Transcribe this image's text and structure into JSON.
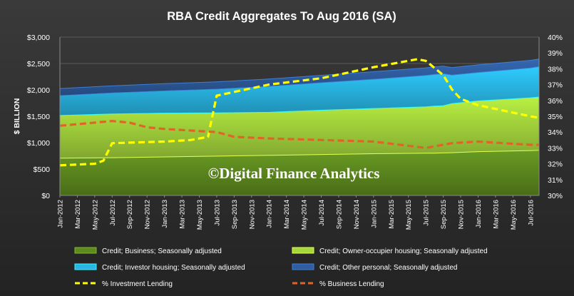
{
  "chart_data": {
    "type": "area",
    "title": "RBA Credit Aggregates To Aug 2016 (SA)",
    "ylabel": "$ BILLION",
    "ylim": [
      0,
      3000
    ],
    "y_ticks": [
      "$0",
      "$500",
      "$1,000",
      "$1,500",
      "$2,000",
      "$2,500",
      "$3,000"
    ],
    "y2lim": [
      0.3,
      0.4
    ],
    "y2_ticks": [
      "30%",
      "31%",
      "32%",
      "33%",
      "34%",
      "35%",
      "36%",
      "37%",
      "38%",
      "39%",
      "40%"
    ],
    "x_tick_labels": [
      "Jan-2012",
      "Mar-2012",
      "May-2012",
      "Jul-2012",
      "Sep-2012",
      "Nov-2012",
      "Jan-2013",
      "Mar-2013",
      "May-2013",
      "Jul-2013",
      "Sep-2013",
      "Nov-2013",
      "Jan-2014",
      "Mar-2014",
      "May-2014",
      "Jul-2014",
      "Sep-2014",
      "Nov-2014",
      "Jan-2015",
      "Mar-2015",
      "May-2015",
      "Jul-2015",
      "Sep-2015",
      "Nov-2015",
      "Jan-2016",
      "Mar-2016",
      "May-2016",
      "Jul-2016"
    ],
    "x": [
      "Jan-2012",
      "Jul-2012",
      "Jan-2013",
      "Jul-2013",
      "Jan-2014",
      "Jul-2014",
      "Jan-2015",
      "Jul-2015",
      "Aug-2015",
      "Sep-2015",
      "Oct-2015",
      "Jan-2016",
      "Jul-2016",
      "Aug-2016"
    ],
    "stacked_series": [
      {
        "name": "Credit; Business; Seasonally adjusted",
        "values": [
          705,
          715,
          730,
          745,
          760,
          775,
          790,
          800,
          802,
          805,
          810,
          830,
          850,
          855
        ],
        "color": "#5e8a1f"
      },
      {
        "name": "Credit; Owner-occupier housing; Seasonally adjusted",
        "values": [
          810,
          830,
          830,
          818,
          816,
          840,
          857,
          880,
          890,
          895,
          930,
          960,
          1000,
          1010
        ],
        "color": "#a5d63c"
      },
      {
        "name": "Credit; Investor housing; Seasonally adjusted",
        "values": [
          375,
          395,
          420,
          450,
          490,
          520,
          555,
          595,
          600,
          605,
          540,
          540,
          565,
          575
        ],
        "color": "#29b6e4"
      },
      {
        "name": "Credit; Other personal; Seasonally adjusted",
        "values": [
          135,
          136,
          137,
          138,
          140,
          141,
          142,
          143,
          143,
          143,
          143,
          144,
          145,
          145
        ],
        "color": "#2f5d9f"
      }
    ],
    "line_series": [
      {
        "name": "% Investment Lending",
        "x": [
          "Jan-2012",
          "May-2012",
          "Jun-2012",
          "Jul-2012",
          "Jan-2013",
          "Apr-2013",
          "Jun-2013",
          "Jul-2013",
          "Jan-2014",
          "Jul-2014",
          "Jan-2015",
          "Jun-2015",
          "Jul-2015",
          "Sep-2015",
          "Oct-2015",
          "Nov-2015",
          "Jan-2016",
          "Jul-2016",
          "Aug-2016"
        ],
        "values": [
          0.319,
          0.32,
          0.322,
          0.333,
          0.334,
          0.335,
          0.337,
          0.363,
          0.37,
          0.374,
          0.381,
          0.386,
          0.385,
          0.376,
          0.367,
          0.361,
          0.357,
          0.35,
          0.349
        ],
        "color": "#ffff00",
        "dash": true
      },
      {
        "name": "% Business Lending",
        "x": [
          "Jan-2012",
          "Jul-2012",
          "Sep-2012",
          "Nov-2012",
          "Jan-2013",
          "Jul-2013",
          "Sep-2013",
          "Jan-2014",
          "Jan-2015",
          "Jul-2015",
          "Oct-2015",
          "Jan-2016",
          "Jul-2016",
          "Aug-2016"
        ],
        "values": [
          0.344,
          0.347,
          0.346,
          0.343,
          0.342,
          0.34,
          0.337,
          0.336,
          0.334,
          0.33,
          0.333,
          0.334,
          0.332,
          0.332
        ],
        "color": "#e0642a",
        "dash": true
      }
    ],
    "legend_position": "bottom",
    "grid": true
  },
  "watermark": "©Digital Finance Analytics"
}
